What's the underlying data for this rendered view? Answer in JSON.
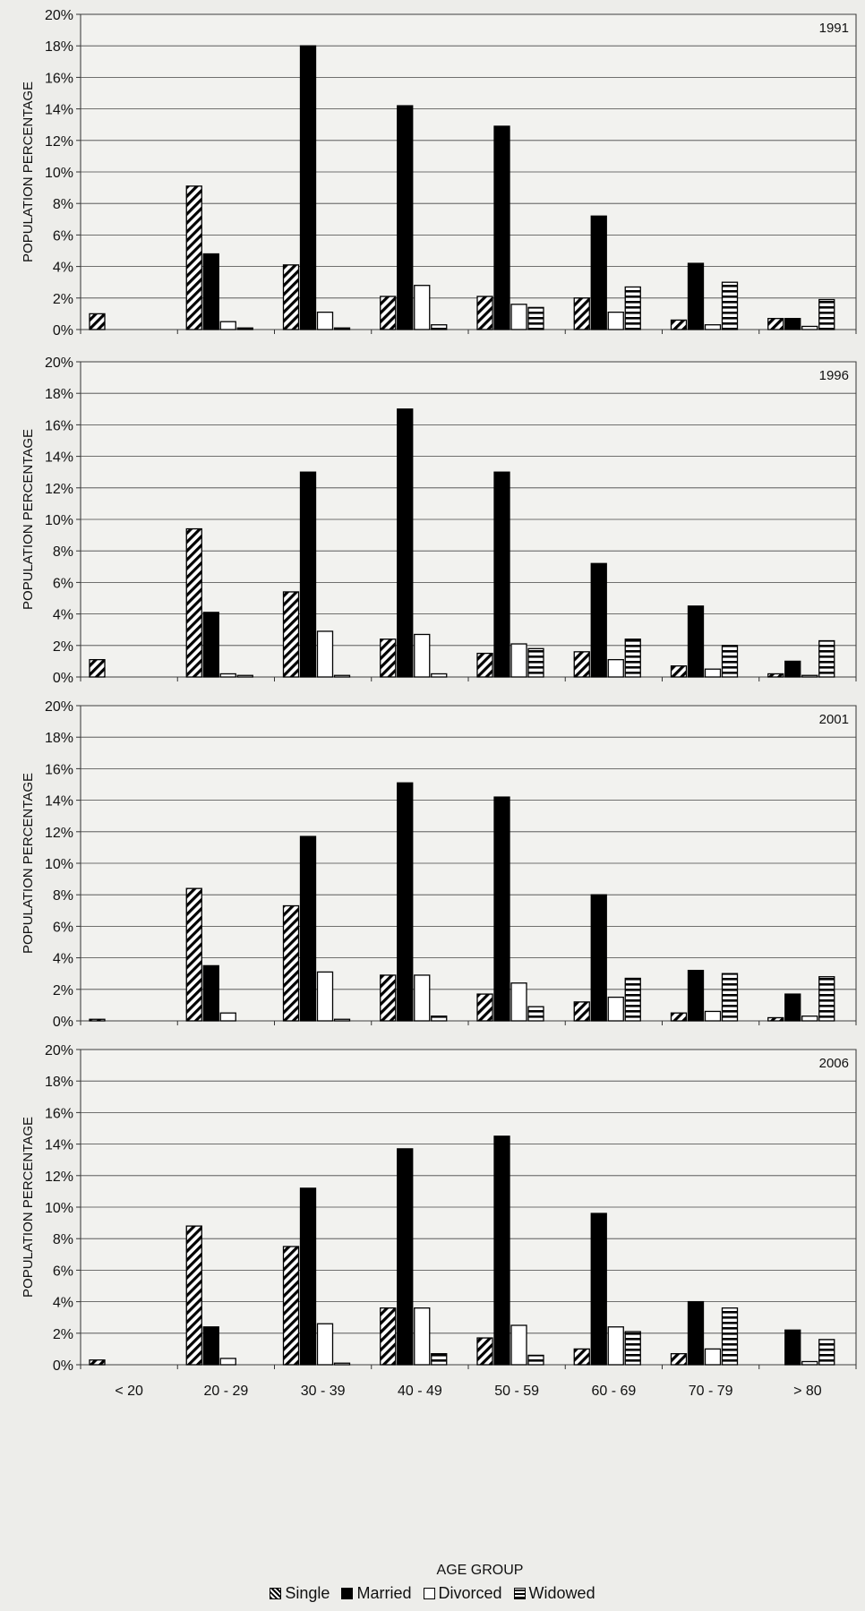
{
  "chart_data": {
    "type": "bar",
    "ylabel": "POPULATION PERCENTAGE",
    "xlabel": "AGE GROUP",
    "categories": [
      "< 20",
      "20 - 29",
      "30 - 39",
      "40 - 49",
      "50 - 59",
      "60 - 69",
      "70 - 79",
      "> 80"
    ],
    "ylim": [
      0,
      20
    ],
    "yticks": [
      "0%",
      "2%",
      "4%",
      "6%",
      "8%",
      "10%",
      "12%",
      "14%",
      "16%",
      "18%",
      "20%"
    ],
    "legend": [
      "Single",
      "Married",
      "Divorced",
      "Widowed"
    ],
    "legend_position": "bottom",
    "grid": true,
    "panels": [
      {
        "year": "1991",
        "series": [
          {
            "name": "Single",
            "values": [
              1.0,
              9.1,
              4.1,
              2.1,
              2.1,
              2.0,
              0.6,
              0.7
            ]
          },
          {
            "name": "Married",
            "values": [
              0,
              4.8,
              18.0,
              14.2,
              12.9,
              7.2,
              4.2,
              0.7
            ]
          },
          {
            "name": "Divorced",
            "values": [
              0,
              0.5,
              1.1,
              2.8,
              1.6,
              1.1,
              0.3,
              0.2
            ]
          },
          {
            "name": "Widowed",
            "values": [
              0,
              0.1,
              0.1,
              0.3,
              1.4,
              2.7,
              3.0,
              1.9
            ]
          }
        ]
      },
      {
        "year": "1996",
        "series": [
          {
            "name": "Single",
            "values": [
              1.1,
              9.4,
              5.4,
              2.4,
              1.5,
              1.6,
              0.7,
              0.2
            ]
          },
          {
            "name": "Married",
            "values": [
              0,
              4.1,
              13.0,
              17.0,
              13.0,
              7.2,
              4.5,
              1.0
            ]
          },
          {
            "name": "Divorced",
            "values": [
              0,
              0.2,
              2.9,
              2.7,
              2.1,
              1.1,
              0.5,
              0.1
            ]
          },
          {
            "name": "Widowed",
            "values": [
              0,
              0.1,
              0.1,
              0.2,
              1.8,
              2.4,
              2.0,
              2.3
            ]
          }
        ]
      },
      {
        "year": "2001",
        "series": [
          {
            "name": "Single",
            "values": [
              0.1,
              8.4,
              7.3,
              2.9,
              1.7,
              1.2,
              0.5,
              0.2
            ]
          },
          {
            "name": "Married",
            "values": [
              0,
              3.5,
              11.7,
              15.1,
              14.2,
              8.0,
              3.2,
              1.7
            ]
          },
          {
            "name": "Divorced",
            "values": [
              0,
              0.5,
              3.1,
              2.9,
              2.4,
              1.5,
              0.6,
              0.3
            ]
          },
          {
            "name": "Widowed",
            "values": [
              0,
              0,
              0.1,
              0.3,
              0.9,
              2.7,
              3.0,
              2.8
            ]
          }
        ]
      },
      {
        "year": "2006",
        "series": [
          {
            "name": "Single",
            "values": [
              0.3,
              8.8,
              7.5,
              3.6,
              1.7,
              1.0,
              0.7,
              0
            ]
          },
          {
            "name": "Married",
            "values": [
              0,
              2.4,
              11.2,
              13.7,
              14.5,
              9.6,
              4.0,
              2.2
            ]
          },
          {
            "name": "Divorced",
            "values": [
              0,
              0.4,
              2.6,
              3.6,
              2.5,
              2.4,
              1.0,
              0.2
            ]
          },
          {
            "name": "Widowed",
            "values": [
              0,
              0,
              0.1,
              0.7,
              0.6,
              2.1,
              3.6,
              1.6
            ]
          }
        ]
      }
    ]
  }
}
